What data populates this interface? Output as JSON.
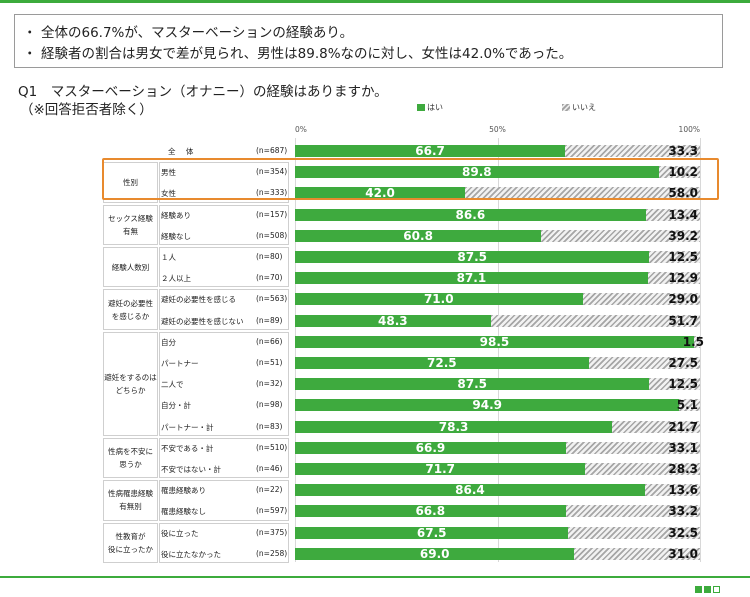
{
  "summary": {
    "bullet": "・",
    "lines": [
      "全体の66.7%が、マスターベーションの経験あり。",
      "経験者の割合は男女で差が見られ、男性は89.8%なのに対し、女性は42.0%であった。"
    ]
  },
  "question": {
    "title": "Q1　マスターベーション（オナニー）の経験はありますか。",
    "note": "（※回答拒否者除く）"
  },
  "colors": {
    "yes": "#3eaa3e",
    "no_hatch": "#a6a6a6",
    "highlight": "#e88a2e",
    "brand": "#3cab3c"
  },
  "chart_data": {
    "type": "bar",
    "orientation": "horizontal",
    "stacked": true,
    "percent_stacked": true,
    "legend": [
      "はい",
      "いいえ"
    ],
    "axis_ticks": [
      "0%",
      "50%",
      "100%"
    ],
    "xlim": [
      0,
      100
    ],
    "groups": [
      {
        "name": "",
        "rows": [
          {
            "label": "全 体",
            "n": "(n=687)",
            "yes": 66.7,
            "no": 33.3
          }
        ]
      },
      {
        "name": "性別",
        "rows": [
          {
            "label": "男性",
            "n": "(n=354)",
            "yes": 89.8,
            "no": 10.2
          },
          {
            "label": "女性",
            "n": "(n=333)",
            "yes": 42.0,
            "no": 58.0
          }
        ]
      },
      {
        "name": "セックス経験\n有無",
        "rows": [
          {
            "label": "経験あり",
            "n": "(n=157)",
            "yes": 86.6,
            "no": 13.4
          },
          {
            "label": "経験なし",
            "n": "(n=508)",
            "yes": 60.8,
            "no": 39.2
          }
        ]
      },
      {
        "name": "経験人数別",
        "rows": [
          {
            "label": "１人",
            "n": "(n=80)",
            "yes": 87.5,
            "no": 12.5
          },
          {
            "label": "２人以上",
            "n": "(n=70)",
            "yes": 87.1,
            "no": 12.9
          }
        ]
      },
      {
        "name": "避妊の必要性\nを感じるか",
        "rows": [
          {
            "label": "避妊の必要性を感じる",
            "n": "(n=563)",
            "yes": 71.0,
            "no": 29.0
          },
          {
            "label": "避妊の必要性を感じない",
            "n": "(n=89)",
            "yes": 48.3,
            "no": 51.7
          }
        ]
      },
      {
        "name": "避妊をするのは\nどちらか",
        "rows": [
          {
            "label": "自分",
            "n": "(n=66)",
            "yes": 98.5,
            "no": 1.5
          },
          {
            "label": "パートナー",
            "n": "(n=51)",
            "yes": 72.5,
            "no": 27.5
          },
          {
            "label": "二人で",
            "n": "(n=32)",
            "yes": 87.5,
            "no": 12.5
          },
          {
            "label": "自分・計",
            "n": "(n=98)",
            "yes": 94.9,
            "no": 5.1
          },
          {
            "label": "パートナー・計",
            "n": "(n=83)",
            "yes": 78.3,
            "no": 21.7
          }
        ]
      },
      {
        "name": "性病を不安に\n思うか",
        "rows": [
          {
            "label": "不安である・計",
            "n": "(n=510)",
            "yes": 66.9,
            "no": 33.1
          },
          {
            "label": "不安ではない・計",
            "n": "(n=46)",
            "yes": 71.7,
            "no": 28.3
          }
        ]
      },
      {
        "name": "性病罹患経験\n有無別",
        "rows": [
          {
            "label": "罹患経験あり",
            "n": "(n=22)",
            "yes": 86.4,
            "no": 13.6
          },
          {
            "label": "罹患経験なし",
            "n": "(n=597)",
            "yes": 66.8,
            "no": 33.2
          }
        ]
      },
      {
        "name": "性教育が\n役に立ったか",
        "rows": [
          {
            "label": "役に立った",
            "n": "(n=375)",
            "yes": 67.5,
            "no": 32.5
          },
          {
            "label": "役に立たなかった",
            "n": "(n=258)",
            "yes": 69.0,
            "no": 31.0
          }
        ]
      }
    ]
  }
}
